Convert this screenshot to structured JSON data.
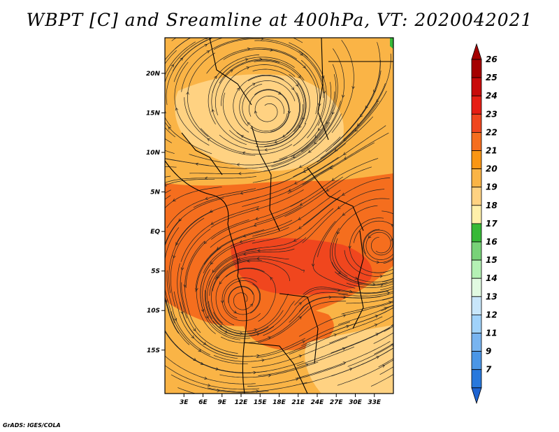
{
  "title": "WBPT [C] and Sreamline at 400hPa, VT: 2020042021",
  "credit": "GrADS: IGES/COLA",
  "map": {
    "lon_range": [
      0,
      36
    ],
    "lat_range": [
      -20.5,
      24.5
    ],
    "lat_ticks": [
      {
        "value": 20,
        "label": "20N"
      },
      {
        "value": 15,
        "label": "15N"
      },
      {
        "value": 10,
        "label": "10N"
      },
      {
        "value": 5,
        "label": "5N"
      },
      {
        "value": 0,
        "label": "EQ"
      },
      {
        "value": -5,
        "label": "5S"
      },
      {
        "value": -10,
        "label": "10S"
      },
      {
        "value": -15,
        "label": "15S"
      }
    ],
    "lon_ticks": [
      {
        "value": 3,
        "label": "3E"
      },
      {
        "value": 6,
        "label": "6E"
      },
      {
        "value": 9,
        "label": "9E"
      },
      {
        "value": 12,
        "label": "12E"
      },
      {
        "value": 15,
        "label": "15E"
      },
      {
        "value": 18,
        "label": "18E"
      },
      {
        "value": 21,
        "label": "21E"
      },
      {
        "value": 24,
        "label": "24E"
      },
      {
        "value": 27,
        "label": "27E"
      },
      {
        "value": 30,
        "label": "30E"
      },
      {
        "value": 33,
        "label": "33E"
      }
    ]
  },
  "colorbar": {
    "levels": [
      {
        "label": "26",
        "color": "#a50000"
      },
      {
        "label": "25",
        "color": "#c80a0a"
      },
      {
        "label": "24",
        "color": "#e61e14"
      },
      {
        "label": "23",
        "color": "#f0461e"
      },
      {
        "label": "22",
        "color": "#f56e1e"
      },
      {
        "label": "21",
        "color": "#fa9614"
      },
      {
        "label": "20",
        "color": "#fab446"
      },
      {
        "label": "19",
        "color": "#ffd282"
      },
      {
        "label": "18",
        "color": "#fff0aa"
      },
      {
        "label": "17",
        "color": "#37b937"
      },
      {
        "label": "16",
        "color": "#78d278"
      },
      {
        "label": "15",
        "color": "#b4f0b4"
      },
      {
        "label": "14",
        "color": "#e1fae1"
      },
      {
        "label": "13",
        "color": "#c8e6fa"
      },
      {
        "label": "12",
        "color": "#a0d2fa"
      },
      {
        "label": "11",
        "color": "#78b4f0"
      },
      {
        "label": "9",
        "color": "#4b96e6"
      },
      {
        "label": "7",
        "color": "#2878dc"
      }
    ],
    "bottom_color": "#1e64d2"
  },
  "fields": [
    {
      "region": "base-north",
      "color": "#fab446"
    },
    {
      "region": "base-south",
      "color": "#fab446"
    },
    {
      "region": "equatorial-band",
      "color": "#f56e1e"
    },
    {
      "region": "congo-core",
      "color": "#f0461e"
    },
    {
      "region": "southern-tongue",
      "color": "#f56e1e"
    },
    {
      "region": "sahel-pale",
      "color": "#ffd282"
    },
    {
      "region": "southeast-pale",
      "color": "#ffd282"
    },
    {
      "region": "green-speck",
      "color": "#37b937"
    }
  ]
}
